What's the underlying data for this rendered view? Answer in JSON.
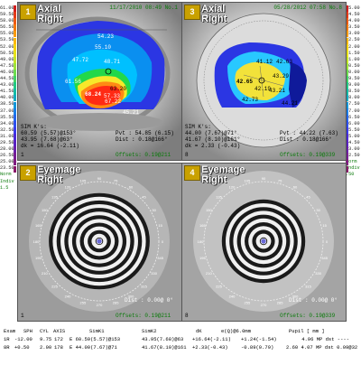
{
  "scale_left": [
    "61.00",
    "59.50",
    "58.00",
    "56.50",
    "55.00",
    "53.50",
    "52.00",
    "50.50",
    "49.00",
    "47.50",
    "46.00",
    "44.50",
    "43.00",
    "41.50",
    "40.00",
    "38.50",
    "37.00",
    "35.50",
    "34.00",
    "32.50",
    "31.00",
    "29.50",
    "28.00",
    "26.50",
    "25.00",
    "23.50"
  ],
  "scale_right": [
    "45.00",
    "44.50",
    "44.00",
    "43.50",
    "43.00",
    "42.50",
    "42.00",
    "41.50",
    "41.00",
    "40.50",
    "40.00",
    "39.50",
    "39.00",
    "38.50",
    "38.00",
    "37.50",
    "37.00",
    "36.50",
    "36.00",
    "35.50",
    "35.00",
    "34.50",
    "33.00",
    "32.50"
  ],
  "scale_left_foot": [
    "Norm",
    "Indiv",
    "1.5"
  ],
  "scale_right_foot": [
    "Norm",
    "Indiv",
    ".50"
  ],
  "panels": [
    {
      "num": "1",
      "title1": "Axial",
      "title2": "Right",
      "date": "11/17/2010 08:49 No.1",
      "sim1": "SIM K's:",
      "sim2": "60.59 (5.57)@153°",
      "sim3": "43.95 (7.68)@63°",
      "sim4": "dk = 16.64 (-2.11)",
      "pv1": "Pvt : 54.85 (6.15)",
      "pv2": "Dist : 0.18@166°",
      "foot_left": "1",
      "foot_right": "Offsets: 0.19@211",
      "values": [
        "54.23",
        "55.10",
        "47.72",
        "48.71",
        "68.24",
        "57.33",
        "63.20",
        "67.22",
        "61.56",
        "45.21"
      ],
      "colors": {
        "outer": "#2b36e3",
        "mid": "#00c0ff",
        "green": "#22d84a",
        "yellow": "#f7e82a",
        "red": "#ff2a14"
      }
    },
    {
      "num": "3",
      "title1": "Axial",
      "title2": "Right",
      "date": "05/28/2012 07:58 No.8",
      "sim1": "SIM K's:",
      "sim2": "44.00 (7.67)@71°",
      "sim3": "41.67 (8.10)@161°",
      "sim4": "dk = 2.33 (-0.43)",
      "pv1": "Pvt : 44.22 (7.63)",
      "pv2": "Dist : 0.18@166°",
      "foot_left": "8",
      "foot_right": "Offsets: 0.19@339",
      "values": [
        "41.12",
        "43.29",
        "42.65",
        "42.19",
        "43.21",
        "42.73",
        "44.21",
        "42.63"
      ],
      "colors": {
        "outer": "#ffffff",
        "mid": "#2b36e3",
        "cyan": "#28c8ff",
        "yellow": "#f2e23a"
      }
    },
    {
      "num": "2",
      "title1": "Eyemage",
      "title2": "Right",
      "dist": "Dist : 0.00@ 0°",
      "foot_left": "1",
      "foot_right": "Offsets: 0.19@211"
    },
    {
      "num": "4",
      "title1": "Eyemage",
      "title2": "Right",
      "dist": "Dist : 0.00@ 0°",
      "foot_left": "8",
      "foot_right": "Offsets: 0.19@339"
    }
  ],
  "ring_labels": [
    "180",
    "165",
    "150",
    "135",
    "120",
    "105",
    "90",
    "75",
    "60",
    "45",
    "30",
    "15",
    "0",
    "345",
    "330",
    "315",
    "300",
    "285",
    "270",
    "255",
    "240",
    "225",
    "210",
    "195"
  ],
  "table": {
    "header": [
      "Exam",
      "SPH",
      "CYL",
      "AXIS",
      "SimK1",
      "SimK2",
      "dK",
      "e(Q)@6.0mm",
      "Pupil [ mm ]"
    ],
    "rows": [
      [
        "1R",
        "-12.00",
        "9.75",
        "172",
        "E 60.59(5.57)@153",
        "43.95(7.68)@63",
        "+16.64(-2.11)",
        "+1.24(-1.54)",
        "4.96 MP dst ----"
      ],
      [
        "8R",
        "+0.50",
        "2.00",
        "178",
        "E 44.00(7.67)@71",
        "41.67(8.10)@161",
        "+2.33(-0.43)",
        "-0.89(0.79)",
        "2.60 4.07 MP dst 0.09@32"
      ]
    ]
  }
}
